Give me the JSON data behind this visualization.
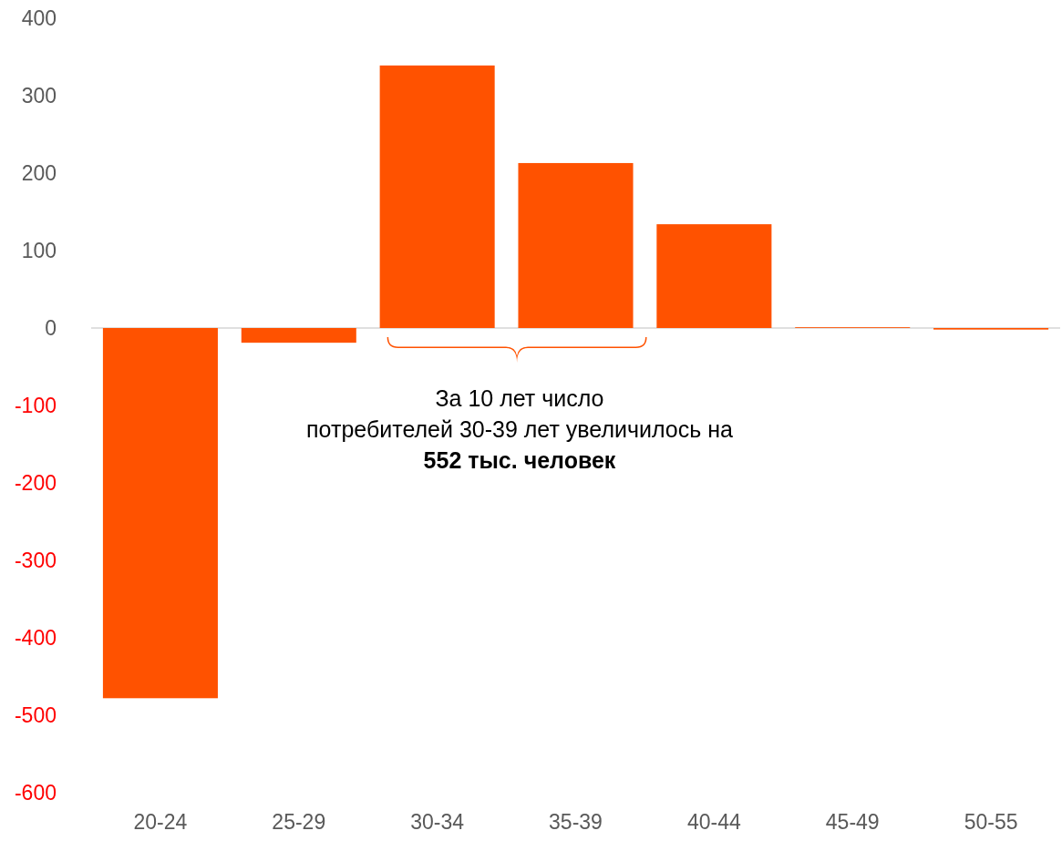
{
  "chart_data": {
    "type": "bar",
    "categories": [
      "20-24",
      "25-29",
      "30-34",
      "35-39",
      "40-44",
      "45-49",
      "50-55"
    ],
    "values": [
      -478,
      -19,
      339,
      213,
      134,
      1,
      -2
    ],
    "color": "#ff5200",
    "ylim": [
      -600,
      400
    ],
    "yticks": [
      -600,
      -500,
      -400,
      -300,
      -200,
      -100,
      0,
      100,
      200,
      300,
      400
    ],
    "annotations": [
      "За 10 лет число потребителей 30-39 лет увеличилось на 552 тыс. человек"
    ]
  }
}
